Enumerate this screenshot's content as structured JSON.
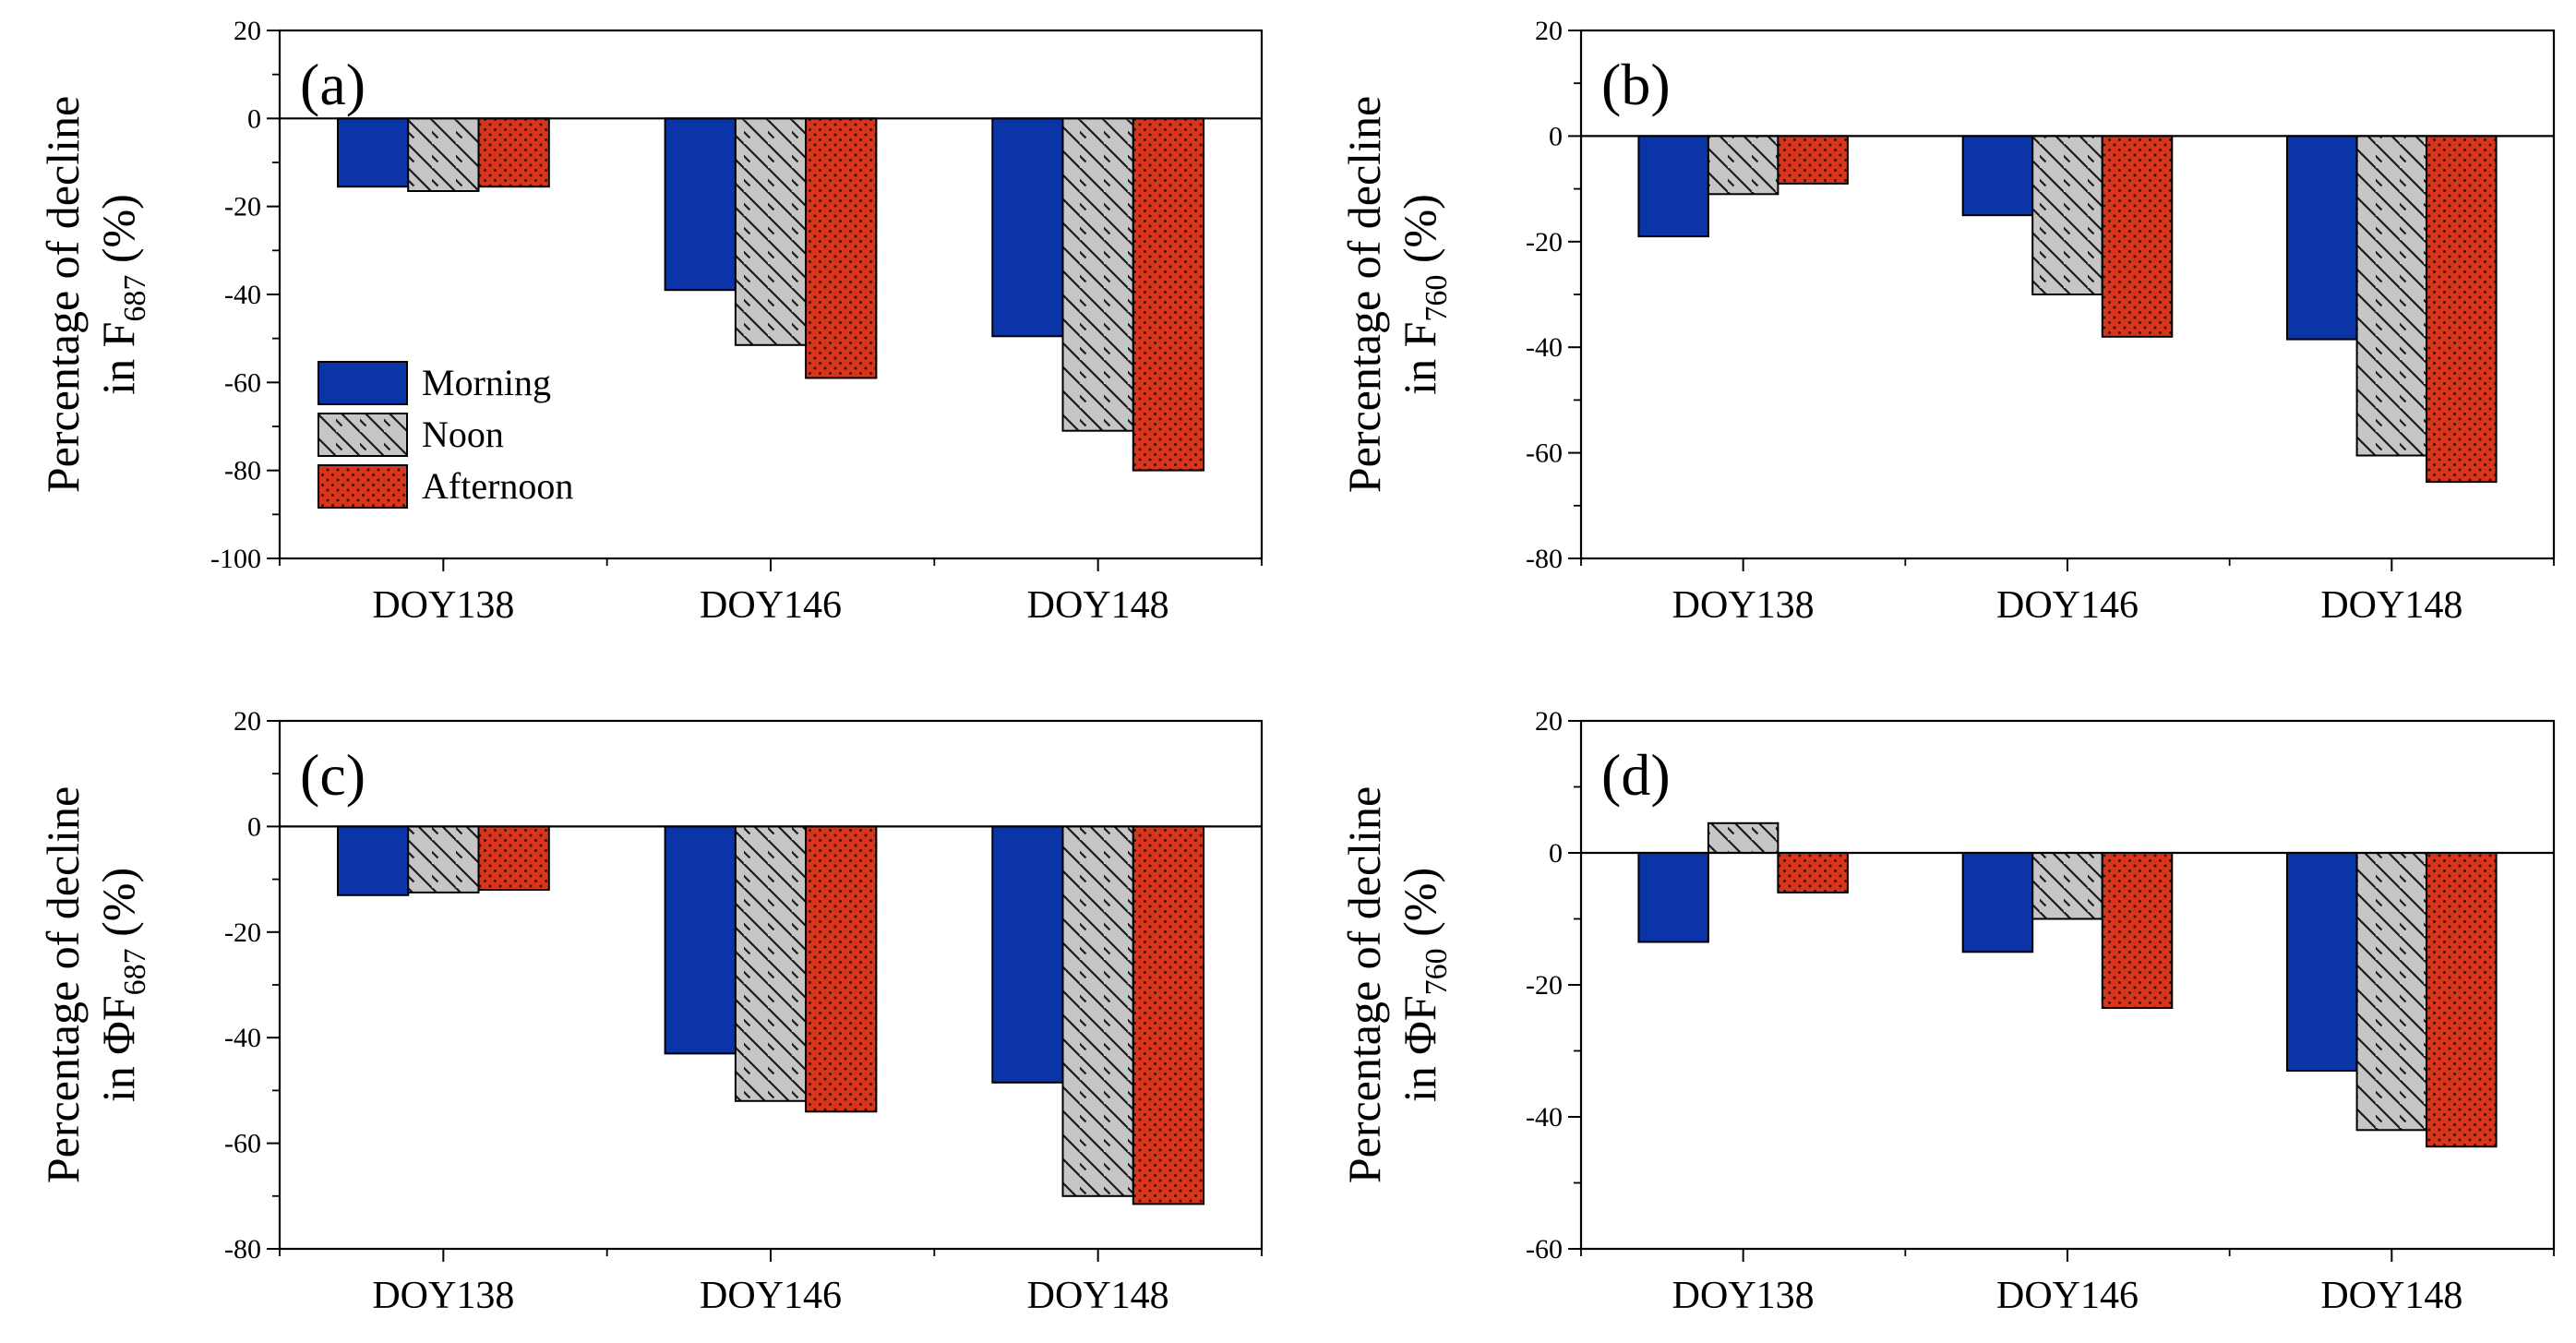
{
  "series_styles": [
    {
      "name": "Morning",
      "color": "#0a34a8",
      "pattern": "solid"
    },
    {
      "name": "Noon",
      "color": "#c6c6c6",
      "pattern": "hatch"
    },
    {
      "name": "Afternoon",
      "color": "#d8351c",
      "pattern": "dots"
    }
  ],
  "chart_data": [
    {
      "type": "bar",
      "panel_label": "(a)",
      "ylabel_line1": "Percentage of decline",
      "ylabel_line2_prefix": "in F",
      "ylabel_line2_sub": "687",
      "ylabel_line2_suffix": " (%)",
      "categories": [
        "DOY138",
        "DOY146",
        "DOY148"
      ],
      "ylim": [
        -100,
        20
      ],
      "yticks": [
        20,
        0,
        -20,
        -40,
        -60,
        -80,
        -100
      ],
      "legend": {
        "show": true,
        "placement": "lower-left",
        "entries": [
          "Morning",
          "Noon",
          "Afternoon"
        ]
      },
      "series": [
        {
          "name": "Morning",
          "values": [
            -15.5,
            -39,
            -49.5
          ]
        },
        {
          "name": "Noon",
          "values": [
            -16.5,
            -51.5,
            -71
          ]
        },
        {
          "name": "Afternoon",
          "values": [
            -15.5,
            -59,
            -80
          ]
        }
      ]
    },
    {
      "type": "bar",
      "panel_label": "(b)",
      "ylabel_line1": "Percentage of decline",
      "ylabel_line2_prefix": "in F",
      "ylabel_line2_sub": "760",
      "ylabel_line2_suffix": " (%)",
      "categories": [
        "DOY138",
        "DOY146",
        "DOY148"
      ],
      "ylim": [
        -80,
        20
      ],
      "yticks": [
        20,
        0,
        -20,
        -40,
        -60,
        -80
      ],
      "legend": {
        "show": false
      },
      "series": [
        {
          "name": "Morning",
          "values": [
            -19,
            -15,
            -38.5
          ]
        },
        {
          "name": "Noon",
          "values": [
            -11,
            -30,
            -60.5
          ]
        },
        {
          "name": "Afternoon",
          "values": [
            -9,
            -38,
            -65.5
          ]
        }
      ]
    },
    {
      "type": "bar",
      "panel_label": "(c)",
      "ylabel_line1": "Percentage of decline",
      "ylabel_line2_prefix": "in ΦF",
      "ylabel_line2_sub": "687",
      "ylabel_line2_suffix": " (%)",
      "categories": [
        "DOY138",
        "DOY146",
        "DOY148"
      ],
      "ylim": [
        -80,
        20
      ],
      "yticks": [
        20,
        0,
        -20,
        -40,
        -60,
        -80
      ],
      "legend": {
        "show": false
      },
      "series": [
        {
          "name": "Morning",
          "values": [
            -13,
            -43,
            -48.5
          ]
        },
        {
          "name": "Noon",
          "values": [
            -12.5,
            -52,
            -70
          ]
        },
        {
          "name": "Afternoon",
          "values": [
            -12,
            -54,
            -71.5
          ]
        }
      ]
    },
    {
      "type": "bar",
      "panel_label": "(d)",
      "ylabel_line1": "Percentage of decline",
      "ylabel_line2_prefix": "in ΦF",
      "ylabel_line2_sub": "760",
      "ylabel_line2_suffix": " (%)",
      "categories": [
        "DOY138",
        "DOY146",
        "DOY148"
      ],
      "ylim": [
        -60,
        20
      ],
      "yticks": [
        20,
        0,
        -20,
        -40,
        -60
      ],
      "legend": {
        "show": false
      },
      "series": [
        {
          "name": "Morning",
          "values": [
            -13.5,
            -15,
            -33
          ]
        },
        {
          "name": "Noon",
          "values": [
            4.5,
            -10,
            -42
          ]
        },
        {
          "name": "Afternoon",
          "values": [
            -6,
            -23.5,
            -44.5
          ]
        }
      ]
    }
  ]
}
